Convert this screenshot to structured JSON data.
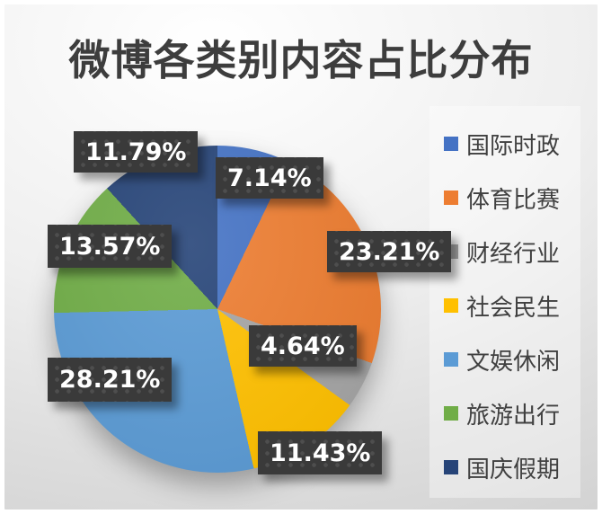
{
  "title": "微博各类别内容占比分布",
  "chart_data": {
    "type": "pie",
    "title": "微博各类别内容占比分布",
    "categories": [
      "国际时政",
      "体育比赛",
      "财经行业",
      "社会民生",
      "文娱休闲",
      "旅游出行",
      "国庆假期"
    ],
    "values": [
      7.14,
      23.21,
      4.64,
      11.43,
      28.21,
      13.57,
      11.79
    ],
    "labels": [
      "7.14%",
      "23.21%",
      "4.64%",
      "11.43%",
      "28.21%",
      "13.57%",
      "11.79%"
    ],
    "colors": [
      "#4472C4",
      "#ED7D31",
      "#A5A5A5",
      "#FFC000",
      "#5B9BD5",
      "#70AD47",
      "#264478"
    ],
    "start_angle_deg": 0,
    "direction": "clockwise",
    "legend_position": "right",
    "data_label_bg": "#3A3A3A",
    "data_label_text_color": "#FFFFFF",
    "title_color": "#3D3D3D"
  }
}
